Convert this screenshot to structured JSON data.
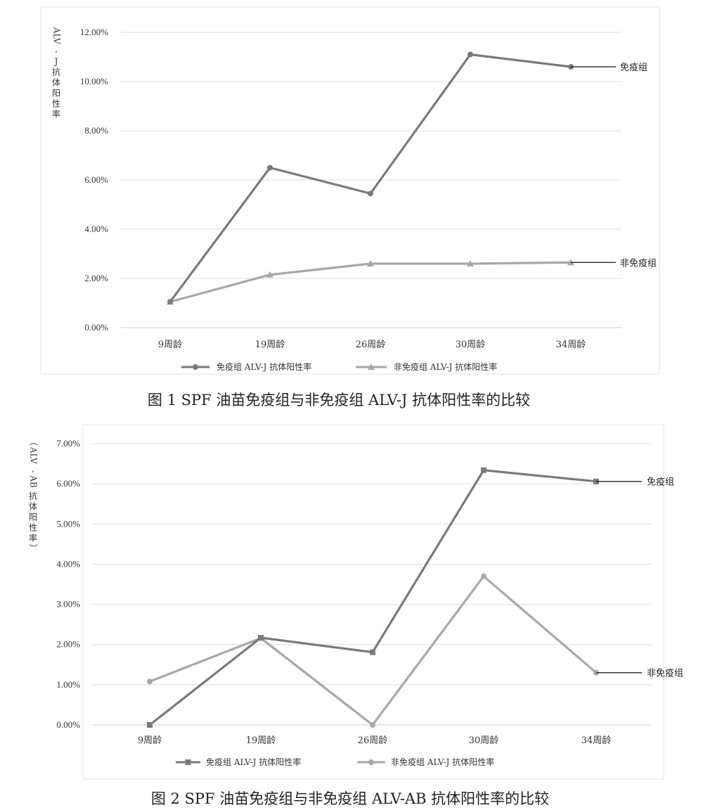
{
  "chart_data": [
    {
      "type": "line",
      "caption": "图 1   SPF 油苗免疫组与非免疫组 ALV-J 抗体阳性率的比较",
      "ylabel": [
        "ALV",
        "-",
        "J",
        "抗",
        "体",
        "阳",
        "性",
        "率"
      ],
      "yticks": [
        "0.00%",
        "2.00%",
        "4.00%",
        "6.00%",
        "8.00%",
        "10.00%",
        "12.00%"
      ],
      "ylim": [
        0,
        12
      ],
      "grid": true,
      "categories": [
        "9周龄",
        "19周龄",
        "26周龄",
        "30周龄",
        "34周龄"
      ],
      "series": [
        {
          "name": "免疫组 ALV-J 抗体阳性率",
          "end_label": "免疫组",
          "marker": "circle",
          "color": "#7a7a7a",
          "values": [
            1.05,
            6.5,
            5.45,
            11.1,
            10.6
          ]
        },
        {
          "name": "非免疫组 ALV-J 抗体阳性率",
          "end_label": "非免疫组",
          "marker": "triangle",
          "color": "#a8a8a8",
          "values": [
            1.05,
            2.15,
            2.6,
            2.6,
            2.65
          ]
        }
      ],
      "legend": "bottom"
    },
    {
      "type": "line",
      "caption": "图 2   SPF 油苗免疫组与非免疫组 ALV-AB 抗体阳性率的比较",
      "ylabel": [
        "（",
        "ALV",
        "-",
        "AB",
        "抗",
        "体",
        "阳",
        "性",
        "率",
        "）"
      ],
      "yticks": [
        "0.00%",
        "1.00%",
        "2.00%",
        "3.00%",
        "4.00%",
        "5.00%",
        "6.00%",
        "7.00%"
      ],
      "ylim": [
        0,
        7
      ],
      "grid": true,
      "categories": [
        "9周龄",
        "19周龄",
        "26周龄",
        "30周龄",
        "34周龄"
      ],
      "series": [
        {
          "name": "免疫组 ALV-J 抗体阳性率",
          "end_label": "免疫组",
          "marker": "square",
          "color": "#7a7a7a",
          "values": [
            0.0,
            2.17,
            1.81,
            6.34,
            6.06
          ]
        },
        {
          "name": "非免疫组 ALV-J 抗体阳性率",
          "end_label": "非免疫组",
          "marker": "circle",
          "color": "#a8a8a8",
          "values": [
            1.08,
            2.16,
            0.0,
            3.7,
            1.3
          ]
        }
      ],
      "legend": "bottom"
    }
  ]
}
